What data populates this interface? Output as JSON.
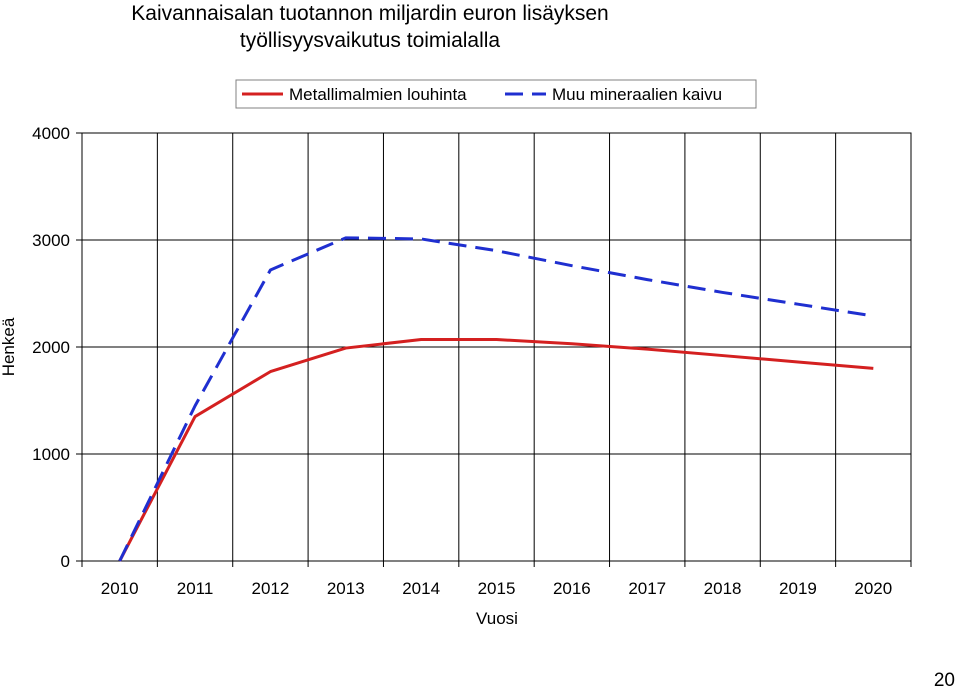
{
  "chart_data": {
    "type": "line",
    "title": [
      "Kaivannaisalan tuotannon miljardin euron lisäyksen",
      "työllisyysvaikutus toimialalla"
    ],
    "xlabel": "Vuosi",
    "ylabel": "Henkeä",
    "categories": [
      "2010",
      "2011",
      "2012",
      "2013",
      "2014",
      "2015",
      "2016",
      "2017",
      "2018",
      "2019",
      "2020"
    ],
    "ylim": [
      0,
      4000
    ],
    "yticks": [
      0,
      1000,
      2000,
      3000,
      4000
    ],
    "grid": true,
    "legend_position": "top",
    "series": [
      {
        "name": "Metallimalmien louhinta",
        "style": "solid",
        "color": "#d42020",
        "values": [
          0,
          1350,
          1770,
          1990,
          2070,
          2070,
          2030,
          1980,
          1920,
          1860,
          1800
        ]
      },
      {
        "name": "Muu mineraalien kaivu",
        "style": "dashed",
        "color": "#1f2fd0",
        "values": [
          0,
          1450,
          2720,
          3020,
          3010,
          2900,
          2760,
          2630,
          2510,
          2400,
          2290
        ]
      }
    ]
  },
  "page_number": "20"
}
